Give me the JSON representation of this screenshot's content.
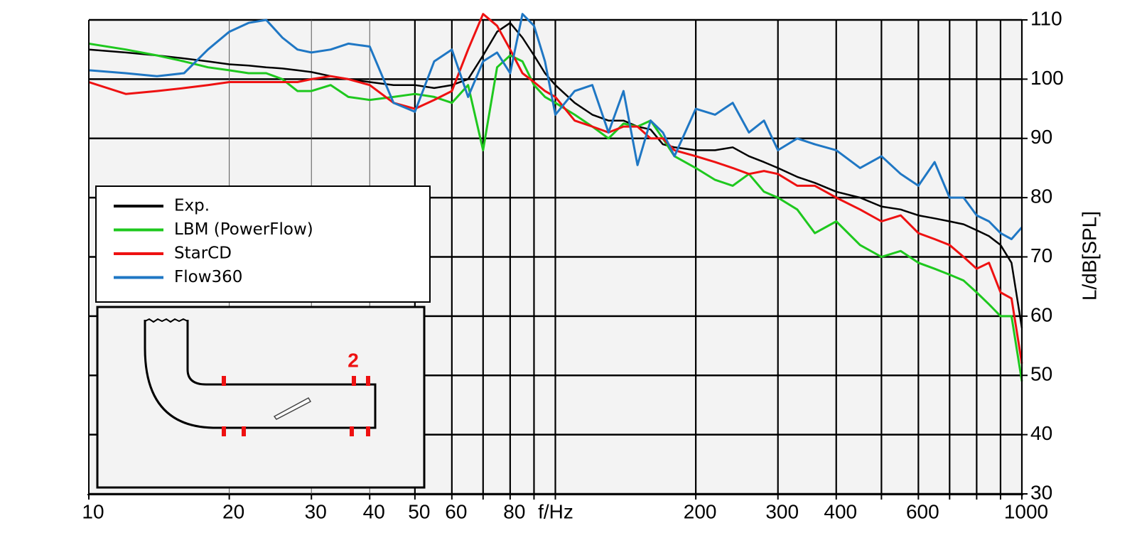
{
  "chart_data": {
    "type": "line",
    "x_label": "f/Hz",
    "y_label": "L/dB[SPL]",
    "xscale": "log",
    "grid": true,
    "legend": "left",
    "xlim": [
      10,
      1000
    ],
    "ylim": [
      30,
      110
    ],
    "xticks": [
      10,
      20,
      30,
      40,
      50,
      60,
      80,
      200,
      300,
      400,
      600,
      1000
    ],
    "xminor": [
      70,
      90,
      100,
      500,
      700,
      800,
      900
    ],
    "yticks": [
      30,
      40,
      50,
      60,
      70,
      80,
      90,
      100,
      110
    ],
    "x": [
      10,
      12,
      14,
      16,
      18,
      20,
      22,
      24,
      26,
      28,
      30,
      33,
      36,
      40,
      45,
      50,
      55,
      60,
      65,
      70,
      75,
      80,
      85,
      90,
      95,
      100,
      110,
      120,
      130,
      140,
      150,
      160,
      170,
      180,
      200,
      220,
      240,
      260,
      280,
      300,
      330,
      360,
      400,
      450,
      500,
      550,
      600,
      650,
      700,
      750,
      800,
      850,
      900,
      950,
      1000
    ],
    "series": [
      {
        "name": "Exp.",
        "color": "#000000",
        "values": [
          105,
          104.5,
          104,
          103.5,
          103,
          102.5,
          102.3,
          102,
          101.8,
          101.5,
          101.2,
          100.5,
          100,
          99.5,
          99,
          99,
          98.5,
          99,
          100,
          104,
          108,
          109.5,
          107,
          104,
          101,
          99,
          96,
          94,
          93,
          93,
          92,
          91.5,
          89,
          88.5,
          88,
          88,
          88.5,
          87,
          86,
          85,
          83.5,
          82.5,
          81,
          80,
          78.5,
          78,
          77,
          76.5,
          76,
          75.5,
          74.5,
          73.5,
          72,
          69,
          58
        ]
      },
      {
        "name": "LBM (PowerFlow)",
        "color": "#1ec81e",
        "values": [
          106,
          105,
          104,
          103,
          102,
          101.5,
          101,
          101,
          100,
          98,
          98,
          99,
          97,
          96.5,
          97,
          97.5,
          97,
          96,
          99,
          88,
          102,
          104,
          103,
          99,
          97,
          96,
          94,
          92,
          90,
          92.5,
          92,
          93,
          90,
          87,
          85,
          83,
          82,
          84,
          81,
          80,
          78,
          74,
          76,
          72,
          70,
          71,
          69,
          68,
          67,
          66,
          64,
          62,
          60,
          60,
          49
        ]
      },
      {
        "name": "StarCD",
        "color": "#ee1111",
        "values": [
          99.5,
          97.5,
          98,
          98.5,
          99,
          99.5,
          99.5,
          99.5,
          99.5,
          99.5,
          100,
          100.5,
          100,
          99,
          96,
          95,
          96.5,
          98,
          105,
          111,
          109,
          105,
          101,
          99.5,
          98,
          97,
          93,
          92,
          91,
          92,
          92,
          90,
          90,
          88,
          87,
          86,
          85,
          84,
          84.5,
          84,
          82,
          82,
          80,
          78,
          76,
          77,
          74,
          73,
          72,
          70,
          68,
          69,
          64,
          63,
          52
        ]
      },
      {
        "name": "Flow360",
        "color": "#1f77c4",
        "values": [
          101.5,
          101,
          100.5,
          101,
          105,
          108,
          109.5,
          110,
          107,
          105,
          104.5,
          105,
          106,
          105.5,
          96,
          94.5,
          103,
          105,
          97,
          103,
          104.5,
          101,
          111,
          109,
          103,
          94,
          98,
          99,
          91,
          98,
          85.5,
          93,
          91,
          87,
          95,
          94,
          96,
          91,
          93,
          88,
          90,
          89,
          88,
          85,
          87,
          84,
          82,
          86,
          80,
          80,
          77,
          76,
          74,
          73,
          75
        ]
      }
    ],
    "inset_label": "2"
  }
}
